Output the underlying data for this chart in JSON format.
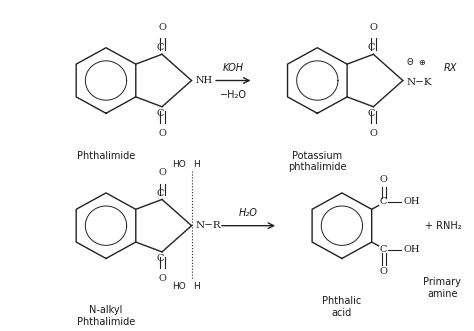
{
  "bg_color": "#ffffff",
  "fig_width": 4.74,
  "fig_height": 3.31,
  "dpi": 100,
  "text_color": "#1a1a1a",
  "line_color": "#222222",
  "phthalimide_label": "Phthalimide",
  "potassium_label": "Potassium\nphthalimide",
  "nalkyl_label": "N-alkyl\nPhthalimide",
  "phthalic_label": "Phthalic\nacid",
  "primary_label": "Primary\namine",
  "arrow1_label_top": "KOH",
  "arrow1_label_bot": "−H₂O",
  "arrow2_label": "RX",
  "arrow3_label": "H₂O",
  "charges": "Θ  ⊕"
}
